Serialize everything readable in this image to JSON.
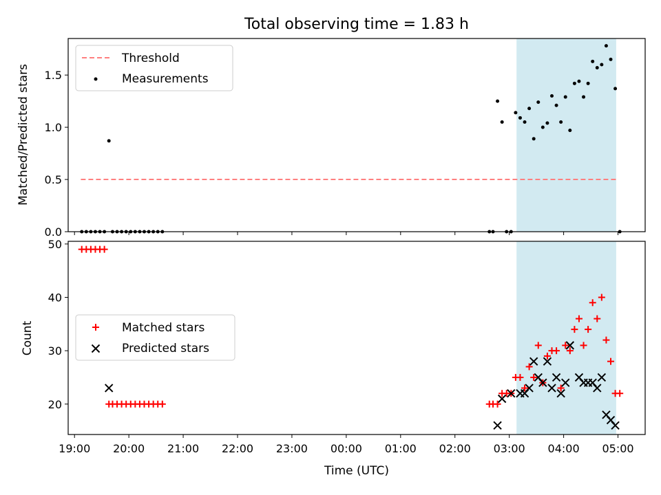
{
  "title": "Total observing time = 1.83 h",
  "colors": {
    "threshold": "#ff7f7f",
    "measurement": "#000000",
    "matched": "#ff0000",
    "predicted": "#000000",
    "highlight": "#add8e6"
  },
  "chart_data": [
    {
      "type": "scatter",
      "ylabel": "Matched/Predicted stars",
      "xlabel": "",
      "ylim": [
        0,
        1.85
      ],
      "yticks": [
        "0.0",
        "0.5",
        "1.0",
        "1.5"
      ],
      "xlim": [
        "18:53",
        "05:30"
      ],
      "highlight_span": [
        "03:08",
        "04:58"
      ],
      "legend": {
        "placement": "upper-left",
        "entries": [
          "Threshold",
          "Measurements"
        ]
      },
      "threshold": {
        "name": "Threshold",
        "y": 0.5,
        "x_range": [
          "19:07",
          "04:58"
        ]
      },
      "measurements": {
        "name": "Measurements",
        "points": [
          [
            "19:08",
            0.0
          ],
          [
            "19:13",
            0.0
          ],
          [
            "19:18",
            0.0
          ],
          [
            "19:23",
            0.0
          ],
          [
            "19:28",
            0.0
          ],
          [
            "19:33",
            0.0
          ],
          [
            "19:38",
            0.87
          ],
          [
            "19:42",
            0.0
          ],
          [
            "19:47",
            0.0
          ],
          [
            "19:52",
            0.0
          ],
          [
            "19:57",
            0.0
          ],
          [
            "20:02",
            0.0
          ],
          [
            "20:07",
            0.0
          ],
          [
            "20:12",
            0.0
          ],
          [
            "20:17",
            0.0
          ],
          [
            "20:22",
            0.0
          ],
          [
            "20:27",
            0.0
          ],
          [
            "20:32",
            0.0
          ],
          [
            "20:37",
            0.0
          ],
          [
            "02:38",
            0.0
          ],
          [
            "02:42",
            0.0
          ],
          [
            "02:47",
            1.25
          ],
          [
            "02:52",
            1.05
          ],
          [
            "02:57",
            0.0
          ],
          [
            "03:02",
            0.0
          ],
          [
            "03:07",
            1.14
          ],
          [
            "03:12",
            1.09
          ],
          [
            "03:17",
            1.05
          ],
          [
            "03:22",
            1.18
          ],
          [
            "03:27",
            0.89
          ],
          [
            "03:32",
            1.24
          ],
          [
            "03:37",
            1.0
          ],
          [
            "03:42",
            1.04
          ],
          [
            "03:47",
            1.3
          ],
          [
            "03:52",
            1.21
          ],
          [
            "03:57",
            1.05
          ],
          [
            "04:02",
            1.29
          ],
          [
            "04:07",
            0.97
          ],
          [
            "04:12",
            1.42
          ],
          [
            "04:17",
            1.44
          ],
          [
            "04:22",
            1.29
          ],
          [
            "04:27",
            1.42
          ],
          [
            "04:32",
            1.63
          ],
          [
            "04:37",
            1.57
          ],
          [
            "04:42",
            1.6
          ],
          [
            "04:47",
            1.78
          ],
          [
            "04:52",
            1.65
          ],
          [
            "04:57",
            1.37
          ],
          [
            "05:02",
            0.0
          ]
        ]
      }
    },
    {
      "type": "scatter",
      "ylabel": "Count",
      "xlabel": "Time (UTC)",
      "ylim": [
        14.3,
        50.5
      ],
      "yticks": [
        "20",
        "30",
        "40",
        "50"
      ],
      "xticks": [
        "19:00",
        "20:00",
        "21:00",
        "22:00",
        "23:00",
        "00:00",
        "01:00",
        "02:00",
        "03:00",
        "04:00",
        "05:00"
      ],
      "xlim": [
        "18:53",
        "05:30"
      ],
      "highlight_span": [
        "03:08",
        "04:58"
      ],
      "legend": {
        "placement": "center-left",
        "entries": [
          "Matched stars",
          "Predicted stars"
        ]
      },
      "series": [
        {
          "name": "Matched stars",
          "marker": "plus",
          "points": [
            [
              "19:08",
              49
            ],
            [
              "19:13",
              49
            ],
            [
              "19:18",
              49
            ],
            [
              "19:23",
              49
            ],
            [
              "19:28",
              49
            ],
            [
              "19:33",
              49
            ],
            [
              "19:38",
              20
            ],
            [
              "19:42",
              20
            ],
            [
              "19:47",
              20
            ],
            [
              "19:52",
              20
            ],
            [
              "19:57",
              20
            ],
            [
              "20:02",
              20
            ],
            [
              "20:07",
              20
            ],
            [
              "20:12",
              20
            ],
            [
              "20:17",
              20
            ],
            [
              "20:22",
              20
            ],
            [
              "20:27",
              20
            ],
            [
              "20:32",
              20
            ],
            [
              "20:37",
              20
            ],
            [
              "02:38",
              20
            ],
            [
              "02:42",
              20
            ],
            [
              "02:47",
              20
            ],
            [
              "02:52",
              22
            ],
            [
              "02:57",
              22
            ],
            [
              "03:02",
              22
            ],
            [
              "03:07",
              25
            ],
            [
              "03:12",
              25
            ],
            [
              "03:17",
              23
            ],
            [
              "03:22",
              27
            ],
            [
              "03:27",
              25
            ],
            [
              "03:32",
              31
            ],
            [
              "03:37",
              24
            ],
            [
              "03:42",
              29
            ],
            [
              "03:47",
              30
            ],
            [
              "03:52",
              30
            ],
            [
              "03:57",
              23
            ],
            [
              "04:02",
              31
            ],
            [
              "04:07",
              30
            ],
            [
              "04:12",
              34
            ],
            [
              "04:17",
              36
            ],
            [
              "04:22",
              31
            ],
            [
              "04:27",
              34
            ],
            [
              "04:32",
              39
            ],
            [
              "04:37",
              36
            ],
            [
              "04:42",
              40
            ],
            [
              "04:47",
              32
            ],
            [
              "04:52",
              28
            ],
            [
              "04:57",
              22
            ],
            [
              "05:02",
              22
            ]
          ]
        },
        {
          "name": "Predicted stars",
          "marker": "x",
          "points": [
            [
              "19:38",
              23
            ],
            [
              "02:47",
              16
            ],
            [
              "02:52",
              21
            ],
            [
              "03:02",
              22
            ],
            [
              "03:12",
              22
            ],
            [
              "03:17",
              22
            ],
            [
              "03:22",
              23
            ],
            [
              "03:27",
              28
            ],
            [
              "03:32",
              25
            ],
            [
              "03:37",
              24
            ],
            [
              "03:42",
              28
            ],
            [
              "03:47",
              23
            ],
            [
              "03:52",
              25
            ],
            [
              "03:57",
              22
            ],
            [
              "04:02",
              24
            ],
            [
              "04:07",
              31
            ],
            [
              "04:17",
              25
            ],
            [
              "04:22",
              24
            ],
            [
              "04:27",
              24
            ],
            [
              "04:32",
              24
            ],
            [
              "04:37",
              23
            ],
            [
              "04:42",
              25
            ],
            [
              "04:47",
              18
            ],
            [
              "04:52",
              17
            ],
            [
              "04:57",
              16
            ]
          ]
        }
      ]
    }
  ]
}
